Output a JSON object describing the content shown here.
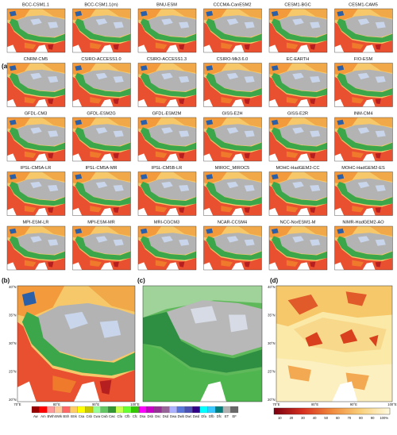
{
  "panel_a": {
    "label": "(a)",
    "models": [
      "BCC-CSM1.1",
      "BCC-CSM1.1(m)",
      "BNU-ESM",
      "CCCMA-CanESM2",
      "CESM1-BGC",
      "CESM1-CAM5",
      "CNRM-CM5",
      "CSIRO-ACCESS1.0",
      "CSIRO-ACCESS1.3",
      "CSIRO-Mk3.6.0",
      "EC-EARTH",
      "FIO-ESM",
      "GFDL-CM3",
      "GFDL-ESM2G",
      "GFDL-ESM2M",
      "GISS-E2H",
      "GISS-E2R",
      "INM-CM4",
      "IPSL-CM5A-LR",
      "IPSL-CM5A-MR",
      "IPSL-CM5B-LR",
      "MIROC_MIROC5",
      "MOHC-HadGEM2-CC",
      "MOHC-HadGEM2-ES",
      "MPI-ESM-LR",
      "MPI-ESM-MR",
      "MRI-CGCM3",
      "NCAR-CCSM4",
      "NCC-NorESM1-M",
      "NIMR-HadGEM2-AO"
    ]
  },
  "panel_b": {
    "label": "(b)",
    "y_labels": [
      "40°N",
      "35°N",
      "30°N",
      "25°N",
      "20°N"
    ],
    "x_labels": [
      "70°E",
      "80°E",
      "90°E",
      "100°E"
    ]
  },
  "panel_c": {
    "label": "(c)"
  },
  "koppen_legend": [
    "Aw",
    "Am",
    "BWh",
    "BWk",
    "BSh",
    "BSk",
    "Csa",
    "Csb",
    "Cwa",
    "Cwb",
    "Cwc",
    "Cfa",
    "Cfb",
    "Cfc",
    "Dsa",
    "Dsb",
    "Dsc",
    "Dsd",
    "Dwa",
    "Dwb",
    "Dwc",
    "Dwd",
    "Dfa",
    "Dfb",
    "Dfc",
    "ET",
    "EF"
  ],
  "panel_d": {
    "label": "(d)",
    "y_labels": [
      "40°N",
      "35°N",
      "30°N",
      "25°N",
      "20°N"
    ],
    "x_labels": [
      "70°E",
      "80°E",
      "90°E",
      "100°E"
    ],
    "colorbar_labels": [
      "10",
      "20",
      "30",
      "40",
      "50",
      "60",
      "70",
      "80",
      "90",
      "100%"
    ]
  }
}
